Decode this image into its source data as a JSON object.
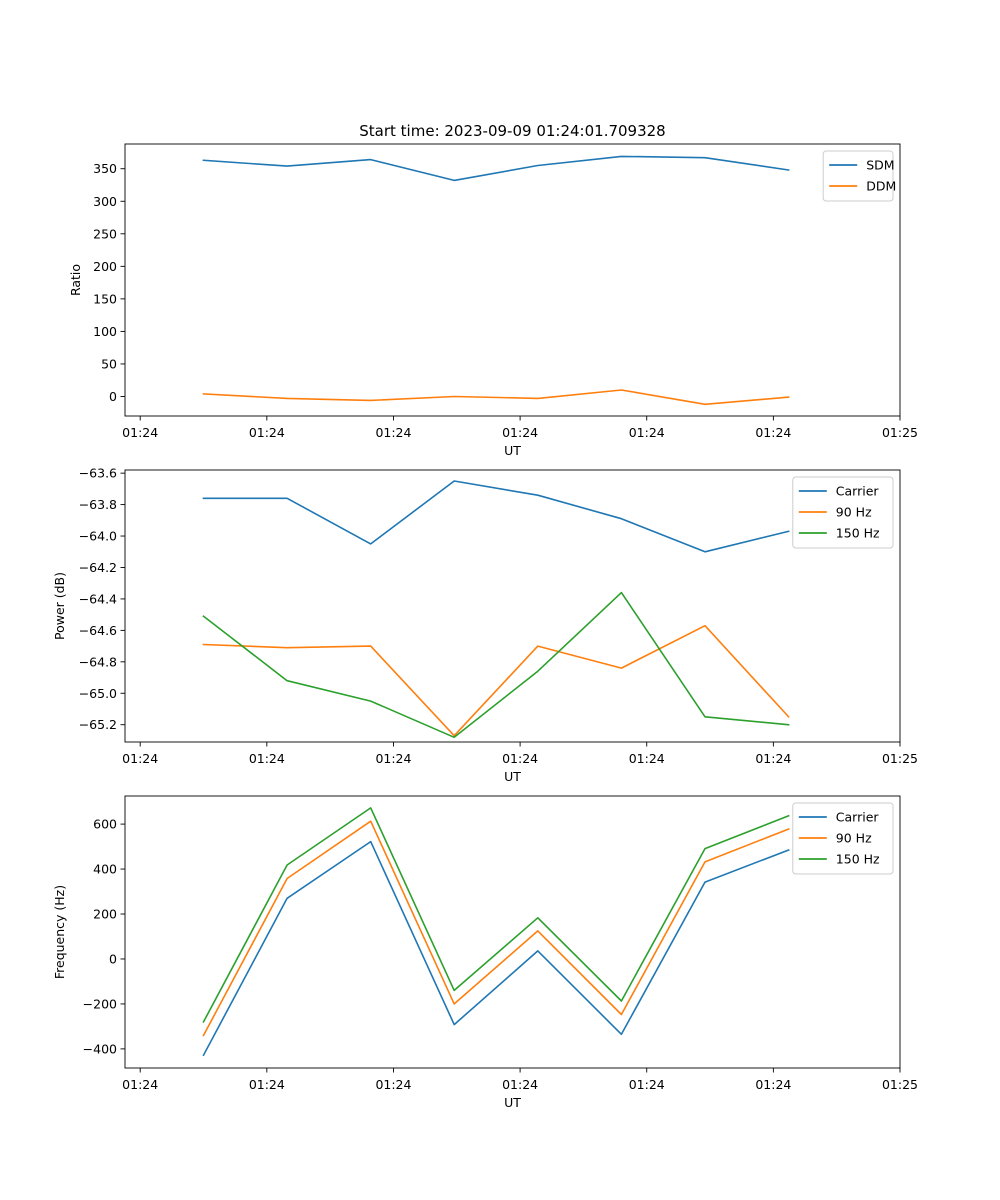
{
  "figure_title": "Start time: 2023-09-09 01:24:01.709328",
  "colors": {
    "blue": "#1f77b4",
    "orange": "#ff7f0e",
    "green": "#2ca02c"
  },
  "chart_data": [
    {
      "type": "line",
      "title": "Start time: 2023-09-09 01:24:01.709328",
      "xlabel": "UT",
      "ylabel": "Ratio",
      "x": [
        0.5,
        1.16,
        1.82,
        2.48,
        3.14,
        3.8,
        4.46,
        5.12
      ],
      "xlim": [
        -0.12,
        6.0
      ],
      "xticks": [
        0,
        1,
        2,
        3,
        4,
        5,
        6
      ],
      "xtick_labels": [
        "01:24",
        "01:24",
        "01:24",
        "01:24",
        "01:24",
        "01:24",
        "01:25"
      ],
      "ylim": [
        -30,
        388
      ],
      "yticks": [
        0,
        50,
        100,
        150,
        200,
        250,
        300,
        350
      ],
      "ytick_labels": [
        "0",
        "50",
        "100",
        "150",
        "200",
        "250",
        "300",
        "350"
      ],
      "legend": "top-right",
      "series": [
        {
          "name": "SDM",
          "color": "#1f77b4",
          "values": [
            363,
            354,
            364,
            332,
            355,
            369,
            367,
            348
          ]
        },
        {
          "name": "DDM",
          "color": "#ff7f0e",
          "values": [
            4,
            -3,
            -6,
            0,
            -3,
            10,
            -12,
            -1
          ]
        }
      ]
    },
    {
      "type": "line",
      "title": "",
      "xlabel": "UT",
      "ylabel": "Power (dB)",
      "x": [
        0.5,
        1.16,
        1.82,
        2.48,
        3.14,
        3.8,
        4.46,
        5.12
      ],
      "xlim": [
        -0.12,
        6.0
      ],
      "xticks": [
        0,
        1,
        2,
        3,
        4,
        5,
        6
      ],
      "xtick_labels": [
        "01:24",
        "01:24",
        "01:24",
        "01:24",
        "01:24",
        "01:24",
        "01:25"
      ],
      "ylim": [
        -65.31,
        -63.58
      ],
      "yticks": [
        -63.6,
        -63.8,
        -64.0,
        -64.2,
        -64.4,
        -64.6,
        -64.8,
        -65.0,
        -65.2
      ],
      "ytick_labels": [
        "−63.6",
        "−63.8",
        "−64.0",
        "−64.2",
        "−64.4",
        "−64.6",
        "−64.8",
        "−65.0",
        "−65.2"
      ],
      "legend": "top-right",
      "series": [
        {
          "name": "Carrier",
          "color": "#1f77b4",
          "values": [
            -63.76,
            -63.76,
            -64.05,
            -63.65,
            -63.74,
            -63.89,
            -64.1,
            -63.97
          ]
        },
        {
          "name": "90 Hz",
          "color": "#ff7f0e",
          "values": [
            -64.69,
            -64.71,
            -64.7,
            -65.27,
            -64.7,
            -64.84,
            -64.57,
            -65.15
          ]
        },
        {
          "name": "150 Hz",
          "color": "#2ca02c",
          "values": [
            -64.51,
            -64.92,
            -65.05,
            -65.28,
            -64.86,
            -64.36,
            -65.15,
            -65.2
          ]
        }
      ]
    },
    {
      "type": "line",
      "title": "",
      "xlabel": "UT",
      "ylabel": "Frequency (Hz)",
      "x": [
        0.5,
        1.16,
        1.82,
        2.48,
        3.14,
        3.8,
        4.46,
        5.12
      ],
      "xlim": [
        -0.12,
        6.0
      ],
      "xticks": [
        0,
        1,
        2,
        3,
        4,
        5,
        6
      ],
      "xtick_labels": [
        "01:24",
        "01:24",
        "01:24",
        "01:24",
        "01:24",
        "01:24",
        "01:25"
      ],
      "ylim": [
        -485,
        725
      ],
      "yticks": [
        -400,
        -200,
        0,
        200,
        400,
        600
      ],
      "ytick_labels": [
        "−400",
        "−200",
        "0",
        "200",
        "400",
        "600"
      ],
      "legend": "top-right",
      "series": [
        {
          "name": "Carrier",
          "color": "#1f77b4",
          "values": [
            -428,
            270,
            522,
            -292,
            36,
            -335,
            342,
            485
          ]
        },
        {
          "name": "90 Hz",
          "color": "#ff7f0e",
          "values": [
            -340,
            358,
            613,
            -200,
            125,
            -247,
            432,
            578
          ]
        },
        {
          "name": "150 Hz",
          "color": "#2ca02c",
          "values": [
            -280,
            418,
            672,
            -140,
            183,
            -187,
            491,
            637
          ]
        }
      ]
    }
  ]
}
